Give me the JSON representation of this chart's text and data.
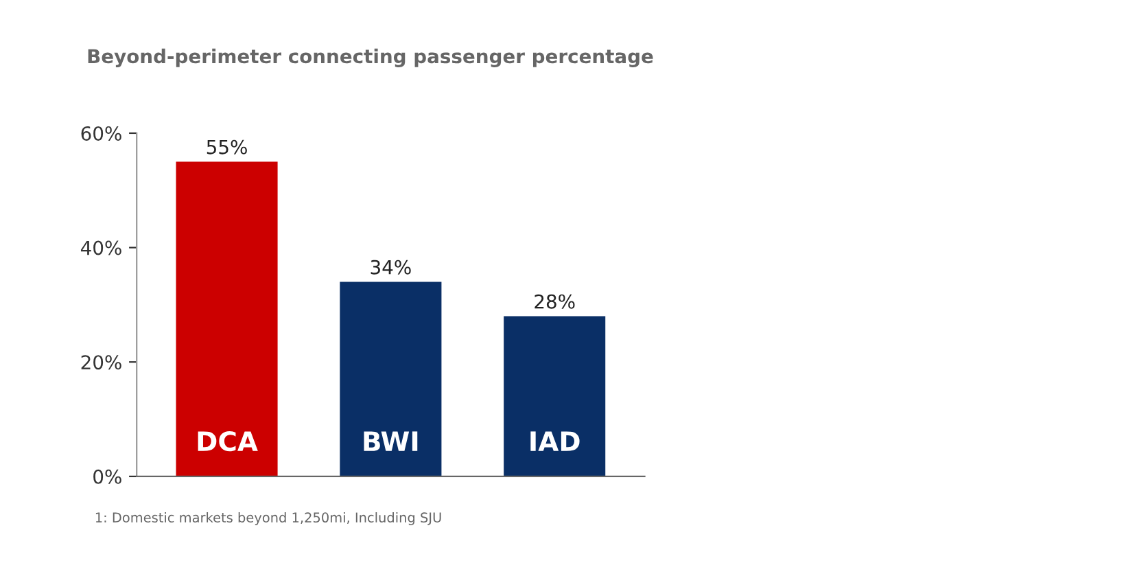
{
  "chart_data": {
    "type": "bar",
    "title": "Beyond-perimeter connecting passenger percentage",
    "categories": [
      "DCA",
      "BWI",
      "IAD"
    ],
    "values": [
      55,
      34,
      28
    ],
    "colors": [
      "#cc0000",
      "#0a2f66",
      "#0a2f66"
    ],
    "value_labels": [
      "55%",
      "34%",
      "28%"
    ],
    "ylim": [
      0,
      60
    ],
    "yticks": [
      {
        "value": 0,
        "label": "0%"
      },
      {
        "value": 20,
        "label": "20%"
      },
      {
        "value": 40,
        "label": "40%"
      },
      {
        "value": 60,
        "label": "60%"
      }
    ],
    "grid": false,
    "legend": false,
    "annotations": [
      "1: Domestic markets beyond 1,250mi, Including SJU"
    ]
  }
}
